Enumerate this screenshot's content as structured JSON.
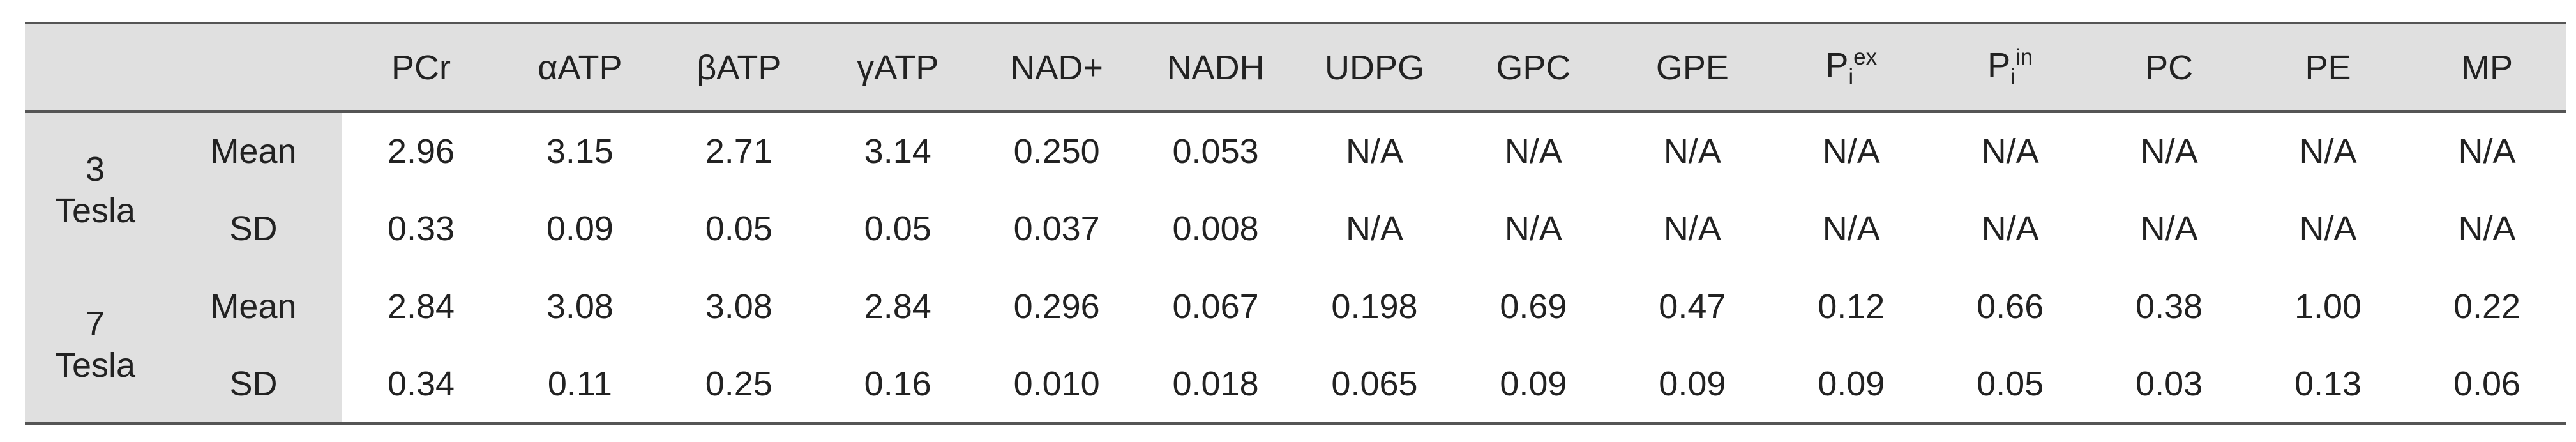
{
  "table": {
    "columns": [
      "PCr",
      "αATP",
      "βATP",
      "γATP",
      "NAD+",
      "NADH",
      "UDPG",
      "GPC",
      "GPE",
      {
        "base": "P",
        "sub": "i",
        "sup": "ex"
      },
      {
        "base": "P",
        "sub": "i",
        "sup": "in"
      },
      "PC",
      "PE",
      "MP"
    ],
    "groups": [
      {
        "label": "3 Tesla",
        "rows": [
          {
            "stat": "Mean",
            "cells": [
              "2.96",
              "3.15",
              "2.71",
              "3.14",
              "0.250",
              "0.053",
              "N/A",
              "N/A",
              "N/A",
              "N/A",
              "N/A",
              "N/A",
              "N/A",
              "N/A"
            ]
          },
          {
            "stat": "SD",
            "cells": [
              "0.33",
              "0.09",
              "0.05",
              "0.05",
              "0.037",
              "0.008",
              "N/A",
              "N/A",
              "N/A",
              "N/A",
              "N/A",
              "N/A",
              "N/A",
              "N/A"
            ]
          }
        ]
      },
      {
        "label": "7 Tesla",
        "rows": [
          {
            "stat": "Mean",
            "cells": [
              "2.84",
              "3.08",
              "3.08",
              "2.84",
              "0.296",
              "0.067",
              "0.198",
              "0.69",
              "0.47",
              "0.12",
              "0.66",
              "0.38",
              "1.00",
              "0.22"
            ]
          },
          {
            "stat": "SD",
            "cells": [
              "0.34",
              "0.11",
              "0.25",
              "0.16",
              "0.010",
              "0.018",
              "0.065",
              "0.09",
              "0.09",
              "0.09",
              "0.05",
              "0.03",
              "0.13",
              "0.06"
            ]
          }
        ]
      }
    ]
  }
}
